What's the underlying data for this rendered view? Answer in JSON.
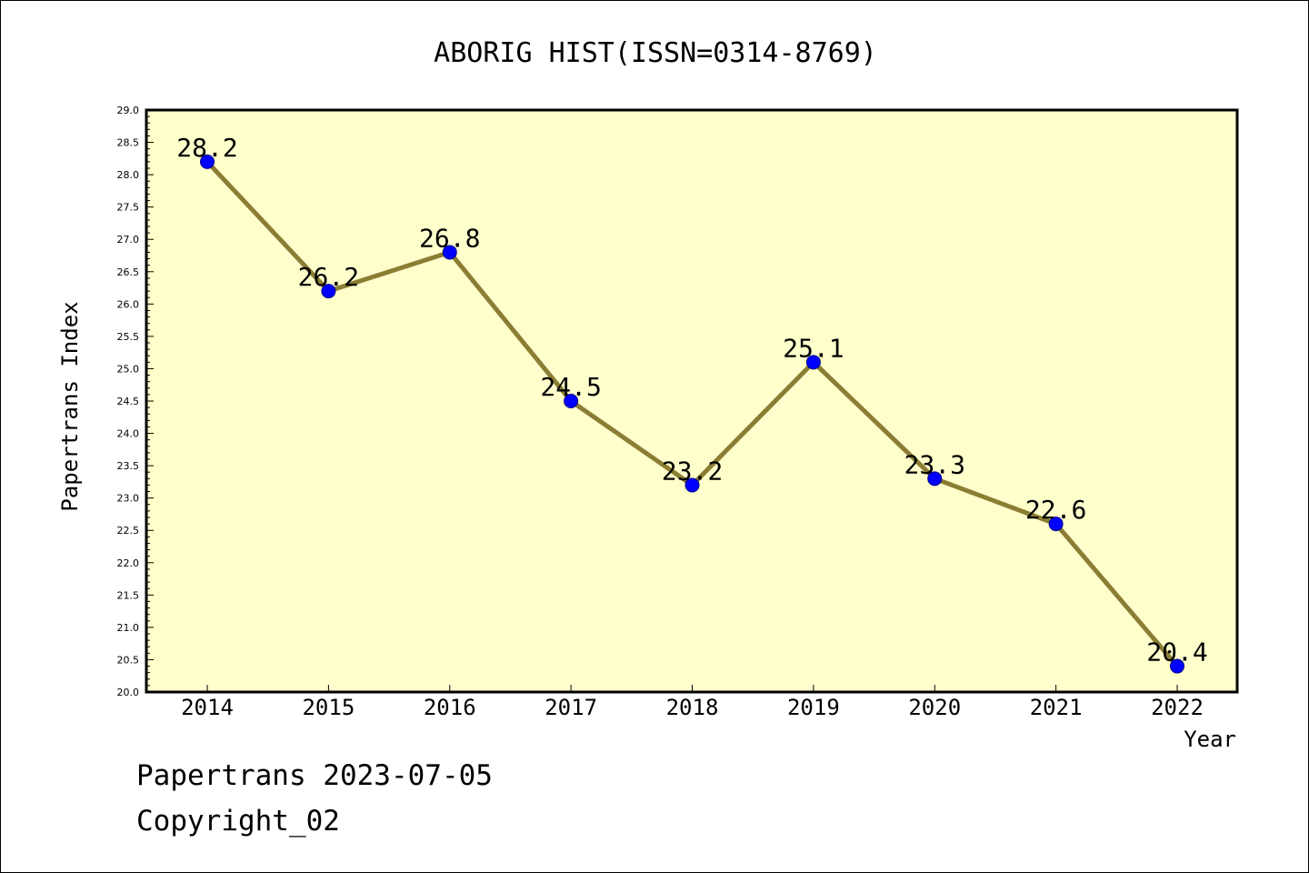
{
  "chart_data": {
    "type": "line",
    "title": "ABORIG HIST(ISSN=0314-8769)",
    "xlabel": "Year",
    "ylabel": "Papertrans Index",
    "categories": [
      "2014",
      "2015",
      "2016",
      "2017",
      "2018",
      "2019",
      "2020",
      "2021",
      "2022"
    ],
    "series": [
      {
        "values": [
          28.2,
          26.2,
          26.8,
          24.5,
          23.2,
          25.1,
          23.3,
          22.6,
          20.4
        ],
        "labels": [
          "28.2",
          "26.2",
          "26.8",
          "24.5",
          "23.2",
          "25.1",
          "23.3",
          "22.6",
          "20.4"
        ]
      }
    ],
    "ylim": [
      20.0,
      29.0
    ],
    "yticks": [
      "20.0",
      "20.5",
      "21.0",
      "21.5",
      "22.0",
      "22.5",
      "23.0",
      "23.5",
      "24.0",
      "24.5",
      "25.0",
      "25.5",
      "26.0",
      "26.5",
      "27.0",
      "27.5",
      "28.0",
      "28.5",
      "29.0"
    ],
    "grid": false,
    "legend": "none"
  },
  "footer": {
    "date_text": "Papertrans 2023-07-05",
    "copyright_text": "Copyright_02"
  },
  "colors": {
    "plot_background": "#ffffcc",
    "line": "#8b7d33",
    "marker": "#0000ff",
    "marker_edge": "#00008b"
  }
}
